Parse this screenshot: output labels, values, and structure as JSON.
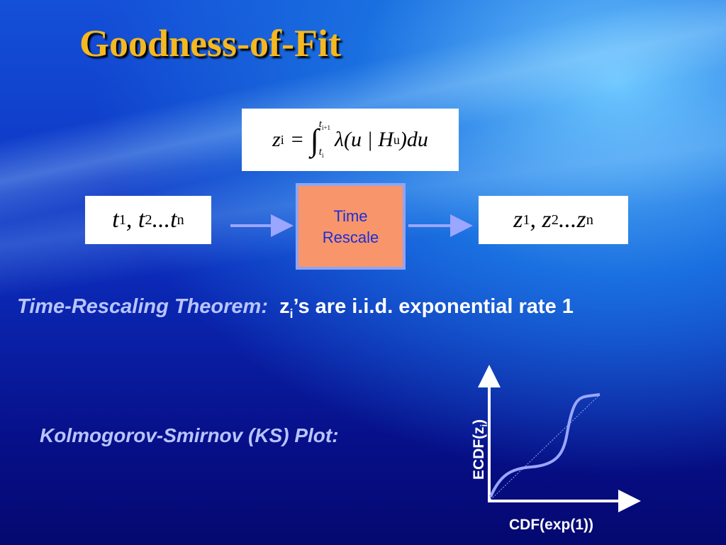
{
  "title": "Goodness-of-Fit",
  "formula": {
    "lhs": "z",
    "lhs_sub": "i",
    "eq": "=",
    "integral": "∫",
    "upper": "t",
    "upper_sub": "i+1",
    "lower": "t",
    "lower_sub": "i",
    "body": "λ(u | H",
    "body_sub": "u",
    "tail": ")du"
  },
  "input_sequence": [
    {
      "main": "t",
      "sub": "1",
      "after": ", "
    },
    {
      "main": "t",
      "sub": "2",
      "after": "..."
    },
    {
      "main": "t",
      "sub": "n"
    }
  ],
  "process_box": {
    "line1": "Time",
    "line2": "Rescale"
  },
  "output_sequence": [
    {
      "main": "z",
      "sub": "1",
      "after": ", "
    },
    {
      "main": "z",
      "sub": "2",
      "after": "..."
    },
    {
      "main": "z",
      "sub": "n"
    }
  ],
  "theorem": {
    "label": "Time-Rescaling Theorem:",
    "var": "z",
    "var_sub": "i",
    "text": "’s are i.i.d. exponential rate 1"
  },
  "ks_label": "Kolmogorov-Smirnov (KS) Plot:",
  "plot": {
    "y_label": "ECDF(z",
    "y_label_sub": "i",
    "y_label_end": ")",
    "x_label": "CDF(exp(1))"
  }
}
